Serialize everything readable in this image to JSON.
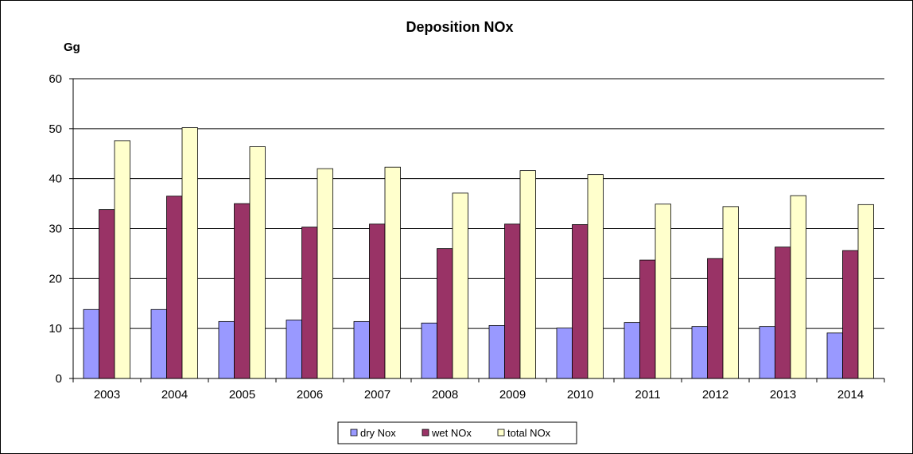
{
  "chart_data": {
    "type": "bar",
    "title": "Deposition NOx",
    "ylabel": "Gg",
    "xlabel": "",
    "ylim": [
      0,
      60
    ],
    "yticks": [
      0,
      10,
      20,
      30,
      40,
      50,
      60
    ],
    "grid": true,
    "legend_position": "bottom",
    "categories": [
      "2003",
      "2004",
      "2005",
      "2006",
      "2007",
      "2008",
      "2009",
      "2010",
      "2011",
      "2012",
      "2013",
      "2014"
    ],
    "series": [
      {
        "name": "dry Nox",
        "color": "#9999ff",
        "values": [
          13.8,
          13.8,
          11.4,
          11.7,
          11.4,
          11.1,
          10.6,
          10.1,
          11.2,
          10.4,
          10.4,
          9.1
        ]
      },
      {
        "name": "wet NOx",
        "color": "#993366",
        "values": [
          33.8,
          36.5,
          35.0,
          30.3,
          30.9,
          26.0,
          30.9,
          30.8,
          23.7,
          24.0,
          26.3,
          25.6
        ]
      },
      {
        "name": "total NOx",
        "color": "#ffffcc",
        "values": [
          47.6,
          50.2,
          46.4,
          42.0,
          42.3,
          37.1,
          41.6,
          40.8,
          34.9,
          34.4,
          36.6,
          34.8
        ]
      }
    ]
  }
}
